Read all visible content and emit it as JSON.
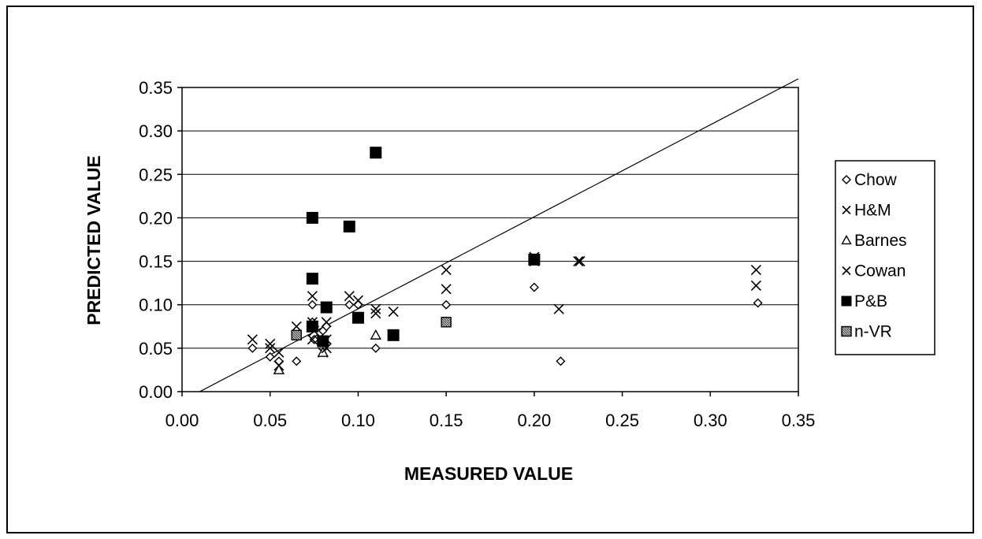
{
  "chart_data": {
    "type": "scatter",
    "title": "",
    "xlabel": "MEASURED VALUE",
    "ylabel": "PREDICTED VALUE",
    "xlim": [
      0,
      0.35
    ],
    "ylim": [
      0,
      0.35
    ],
    "x_ticks": [
      "0.00",
      "0.05",
      "0.10",
      "0.15",
      "0.20",
      "0.25",
      "0.30",
      "0.35"
    ],
    "y_ticks": [
      "0.00",
      "0.05",
      "0.10",
      "0.15",
      "0.20",
      "0.25",
      "0.30",
      "0.35"
    ],
    "grid": "horizontal",
    "legend_position": "right",
    "reference_line": {
      "points": [
        [
          0.01,
          0.0
        ],
        [
          0.35,
          0.36
        ]
      ]
    },
    "series": [
      {
        "name": "Chow",
        "marker": "diamond",
        "color": "#000000",
        "points": [
          [
            0.04,
            0.05
          ],
          [
            0.05,
            0.04
          ],
          [
            0.055,
            0.035
          ],
          [
            0.065,
            0.035
          ],
          [
            0.074,
            0.1
          ],
          [
            0.074,
            0.08
          ],
          [
            0.075,
            0.06
          ],
          [
            0.08,
            0.07
          ],
          [
            0.082,
            0.075
          ],
          [
            0.095,
            0.1
          ],
          [
            0.1,
            0.1
          ],
          [
            0.11,
            0.05
          ],
          [
            0.15,
            0.1
          ],
          [
            0.2,
            0.12
          ],
          [
            0.215,
            0.035
          ],
          [
            0.327,
            0.102
          ]
        ]
      },
      {
        "name": "H&M",
        "marker": "x",
        "color": "#000000",
        "points": [
          [
            0.04,
            0.06
          ],
          [
            0.05,
            0.055
          ],
          [
            0.055,
            0.045
          ],
          [
            0.065,
            0.075
          ],
          [
            0.074,
            0.11
          ],
          [
            0.075,
            0.07
          ],
          [
            0.08,
            0.045
          ],
          [
            0.082,
            0.06
          ],
          [
            0.095,
            0.11
          ],
          [
            0.1,
            0.105
          ],
          [
            0.11,
            0.09
          ],
          [
            0.12,
            0.092
          ],
          [
            0.15,
            0.14
          ],
          [
            0.2,
            0.155
          ],
          [
            0.214,
            0.095
          ],
          [
            0.225,
            0.15
          ],
          [
            0.326,
            0.14
          ]
        ]
      },
      {
        "name": "Barnes",
        "marker": "triangle",
        "color": "#000000",
        "points": [
          [
            0.055,
            0.025
          ],
          [
            0.08,
            0.045
          ],
          [
            0.11,
            0.065
          ]
        ]
      },
      {
        "name": "Cowan",
        "marker": "x",
        "color": "#000000",
        "points": [
          [
            0.05,
            0.05
          ],
          [
            0.055,
            0.03
          ],
          [
            0.074,
            0.06
          ],
          [
            0.074,
            0.08
          ],
          [
            0.082,
            0.05
          ],
          [
            0.082,
            0.08
          ],
          [
            0.11,
            0.095
          ],
          [
            0.15,
            0.118
          ],
          [
            0.2,
            0.15
          ],
          [
            0.226,
            0.15
          ],
          [
            0.326,
            0.122
          ]
        ]
      },
      {
        "name": "P&B",
        "marker": "square",
        "color": "#000000",
        "points": [
          [
            0.074,
            0.2
          ],
          [
            0.074,
            0.13
          ],
          [
            0.074,
            0.075
          ],
          [
            0.08,
            0.058
          ],
          [
            0.082,
            0.097
          ],
          [
            0.095,
            0.19
          ],
          [
            0.1,
            0.085
          ],
          [
            0.11,
            0.275
          ],
          [
            0.12,
            0.065
          ],
          [
            0.2,
            0.152
          ]
        ]
      },
      {
        "name": "n-VR",
        "marker": "square-hatched",
        "color": "#555555",
        "points": [
          [
            0.065,
            0.065
          ],
          [
            0.15,
            0.08
          ]
        ]
      }
    ]
  }
}
